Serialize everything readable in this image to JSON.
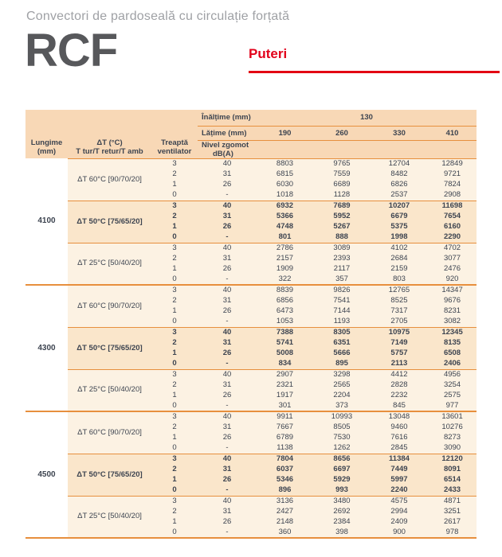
{
  "page": {
    "subtitle": "Convectori de pardoseală cu circulație forțată",
    "product_code": "RCF",
    "section_label": "Puteri"
  },
  "colors": {
    "accent_red": "#e30613",
    "header_orange": "#f8d8b6",
    "row_cream": "#fcf2e3",
    "row_highlight": "#fae6cb",
    "rule_orange": "#e78f3d",
    "text_dark": "#3d4450",
    "title_gray": "#57585b",
    "subtitle_gray": "#9fa1a5"
  },
  "table": {
    "corner": {
      "lungime_l1": "Lungime",
      "lungime_l2": "(mm)",
      "deltat_l1": "ΔT (°C)",
      "deltat_l2": "T tur/T retur/T amb",
      "treapta_l1": "Treaptă",
      "treapta_l2": "ventilator"
    },
    "inaltime_label": "Înălțime (mm)",
    "inaltime_value": "130",
    "latime_label": "Lățime (mm)",
    "zgomot_l1": "Nivel zgomot",
    "zgomot_l2": "dB(A)",
    "widths": [
      "190",
      "260",
      "330",
      "410"
    ],
    "groups": [
      {
        "lungime": "4100",
        "blocks": [
          {
            "delta_t": "ΔT 60°C [90/70/20]",
            "bold": false,
            "rows": [
              {
                "treapta": "3",
                "zgomot": "40",
                "values": [
                  "8803",
                  "9765",
                  "12704",
                  "12849"
                ]
              },
              {
                "treapta": "2",
                "zgomot": "31",
                "values": [
                  "6815",
                  "7559",
                  "8482",
                  "9721"
                ]
              },
              {
                "treapta": "1",
                "zgomot": "26",
                "values": [
                  "6030",
                  "6689",
                  "6826",
                  "7824"
                ]
              },
              {
                "treapta": "0",
                "zgomot": "-",
                "values": [
                  "1018",
                  "1128",
                  "2537",
                  "2908"
                ]
              }
            ]
          },
          {
            "delta_t": "ΔT 50°C [75/65/20]",
            "bold": true,
            "rows": [
              {
                "treapta": "3",
                "zgomot": "40",
                "values": [
                  "6932",
                  "7689",
                  "10207",
                  "11698"
                ]
              },
              {
                "treapta": "2",
                "zgomot": "31",
                "values": [
                  "5366",
                  "5952",
                  "6679",
                  "7654"
                ]
              },
              {
                "treapta": "1",
                "zgomot": "26",
                "values": [
                  "4748",
                  "5267",
                  "5375",
                  "6160"
                ]
              },
              {
                "treapta": "0",
                "zgomot": "-",
                "values": [
                  "801",
                  "888",
                  "1998",
                  "2290"
                ]
              }
            ]
          },
          {
            "delta_t": "ΔT 25°C [50/40/20]",
            "bold": false,
            "rows": [
              {
                "treapta": "3",
                "zgomot": "40",
                "values": [
                  "2786",
                  "3089",
                  "4102",
                  "4702"
                ]
              },
              {
                "treapta": "2",
                "zgomot": "31",
                "values": [
                  "2157",
                  "2393",
                  "2684",
                  "3077"
                ]
              },
              {
                "treapta": "1",
                "zgomot": "26",
                "values": [
                  "1909",
                  "2117",
                  "2159",
                  "2476"
                ]
              },
              {
                "treapta": "0",
                "zgomot": "-",
                "values": [
                  "322",
                  "357",
                  "803",
                  "920"
                ]
              }
            ]
          }
        ]
      },
      {
        "lungime": "4300",
        "blocks": [
          {
            "delta_t": "ΔT 60°C [90/70/20]",
            "bold": false,
            "rows": [
              {
                "treapta": "3",
                "zgomot": "40",
                "values": [
                  "8839",
                  "9826",
                  "12765",
                  "14347"
                ]
              },
              {
                "treapta": "2",
                "zgomot": "31",
                "values": [
                  "6856",
                  "7541",
                  "8525",
                  "9676"
                ]
              },
              {
                "treapta": "1",
                "zgomot": "26",
                "values": [
                  "6473",
                  "7144",
                  "7317",
                  "8231"
                ]
              },
              {
                "treapta": "0",
                "zgomot": "-",
                "values": [
                  "1053",
                  "1193",
                  "2705",
                  "3082"
                ]
              }
            ]
          },
          {
            "delta_t": "ΔT 50°C [75/65/20]",
            "bold": true,
            "rows": [
              {
                "treapta": "3",
                "zgomot": "40",
                "values": [
                  "7388",
                  "8305",
                  "10975",
                  "12345"
                ]
              },
              {
                "treapta": "2",
                "zgomot": "31",
                "values": [
                  "5741",
                  "6351",
                  "7149",
                  "8135"
                ]
              },
              {
                "treapta": "1",
                "zgomot": "26",
                "values": [
                  "5008",
                  "5666",
                  "5757",
                  "6508"
                ]
              },
              {
                "treapta": "0",
                "zgomot": "-",
                "values": [
                  "834",
                  "895",
                  "2113",
                  "2406"
                ]
              }
            ]
          },
          {
            "delta_t": "ΔT 25°C [50/40/20]",
            "bold": false,
            "rows": [
              {
                "treapta": "3",
                "zgomot": "40",
                "values": [
                  "2907",
                  "3298",
                  "4412",
                  "4956"
                ]
              },
              {
                "treapta": "2",
                "zgomot": "31",
                "values": [
                  "2321",
                  "2565",
                  "2828",
                  "3254"
                ]
              },
              {
                "treapta": "1",
                "zgomot": "26",
                "values": [
                  "1917",
                  "2204",
                  "2232",
                  "2575"
                ]
              },
              {
                "treapta": "0",
                "zgomot": "-",
                "values": [
                  "301",
                  "373",
                  "845",
                  "977"
                ]
              }
            ]
          }
        ]
      },
      {
        "lungime": "4500",
        "blocks": [
          {
            "delta_t": "ΔT 60°C [90/70/20]",
            "bold": false,
            "rows": [
              {
                "treapta": "3",
                "zgomot": "40",
                "values": [
                  "9911",
                  "10993",
                  "13048",
                  "13601"
                ]
              },
              {
                "treapta": "2",
                "zgomot": "31",
                "values": [
                  "7667",
                  "8505",
                  "9460",
                  "10276"
                ]
              },
              {
                "treapta": "1",
                "zgomot": "26",
                "values": [
                  "6789",
                  "7530",
                  "7616",
                  "8273"
                ]
              },
              {
                "treapta": "0",
                "zgomot": "-",
                "values": [
                  "1138",
                  "1262",
                  "2845",
                  "3090"
                ]
              }
            ]
          },
          {
            "delta_t": "ΔT 50°C [75/65/20]",
            "bold": true,
            "rows": [
              {
                "treapta": "3",
                "zgomot": "40",
                "values": [
                  "7804",
                  "8656",
                  "11384",
                  "12120"
                ]
              },
              {
                "treapta": "2",
                "zgomot": "31",
                "values": [
                  "6037",
                  "6697",
                  "7449",
                  "8091"
                ]
              },
              {
                "treapta": "1",
                "zgomot": "26",
                "values": [
                  "5346",
                  "5929",
                  "5997",
                  "6514"
                ]
              },
              {
                "treapta": "0",
                "zgomot": "-",
                "values": [
                  "896",
                  "993",
                  "2240",
                  "2433"
                ]
              }
            ]
          },
          {
            "delta_t": "ΔT 25°C [50/40/20]",
            "bold": false,
            "rows": [
              {
                "treapta": "3",
                "zgomot": "40",
                "values": [
                  "3136",
                  "3480",
                  "4575",
                  "4871"
                ]
              },
              {
                "treapta": "2",
                "zgomot": "31",
                "values": [
                  "2427",
                  "2692",
                  "2994",
                  "3251"
                ]
              },
              {
                "treapta": "1",
                "zgomot": "26",
                "values": [
                  "2148",
                  "2384",
                  "2409",
                  "2617"
                ]
              },
              {
                "treapta": "0",
                "zgomot": "-",
                "values": [
                  "360",
                  "398",
                  "900",
                  "978"
                ]
              }
            ]
          }
        ]
      }
    ]
  }
}
